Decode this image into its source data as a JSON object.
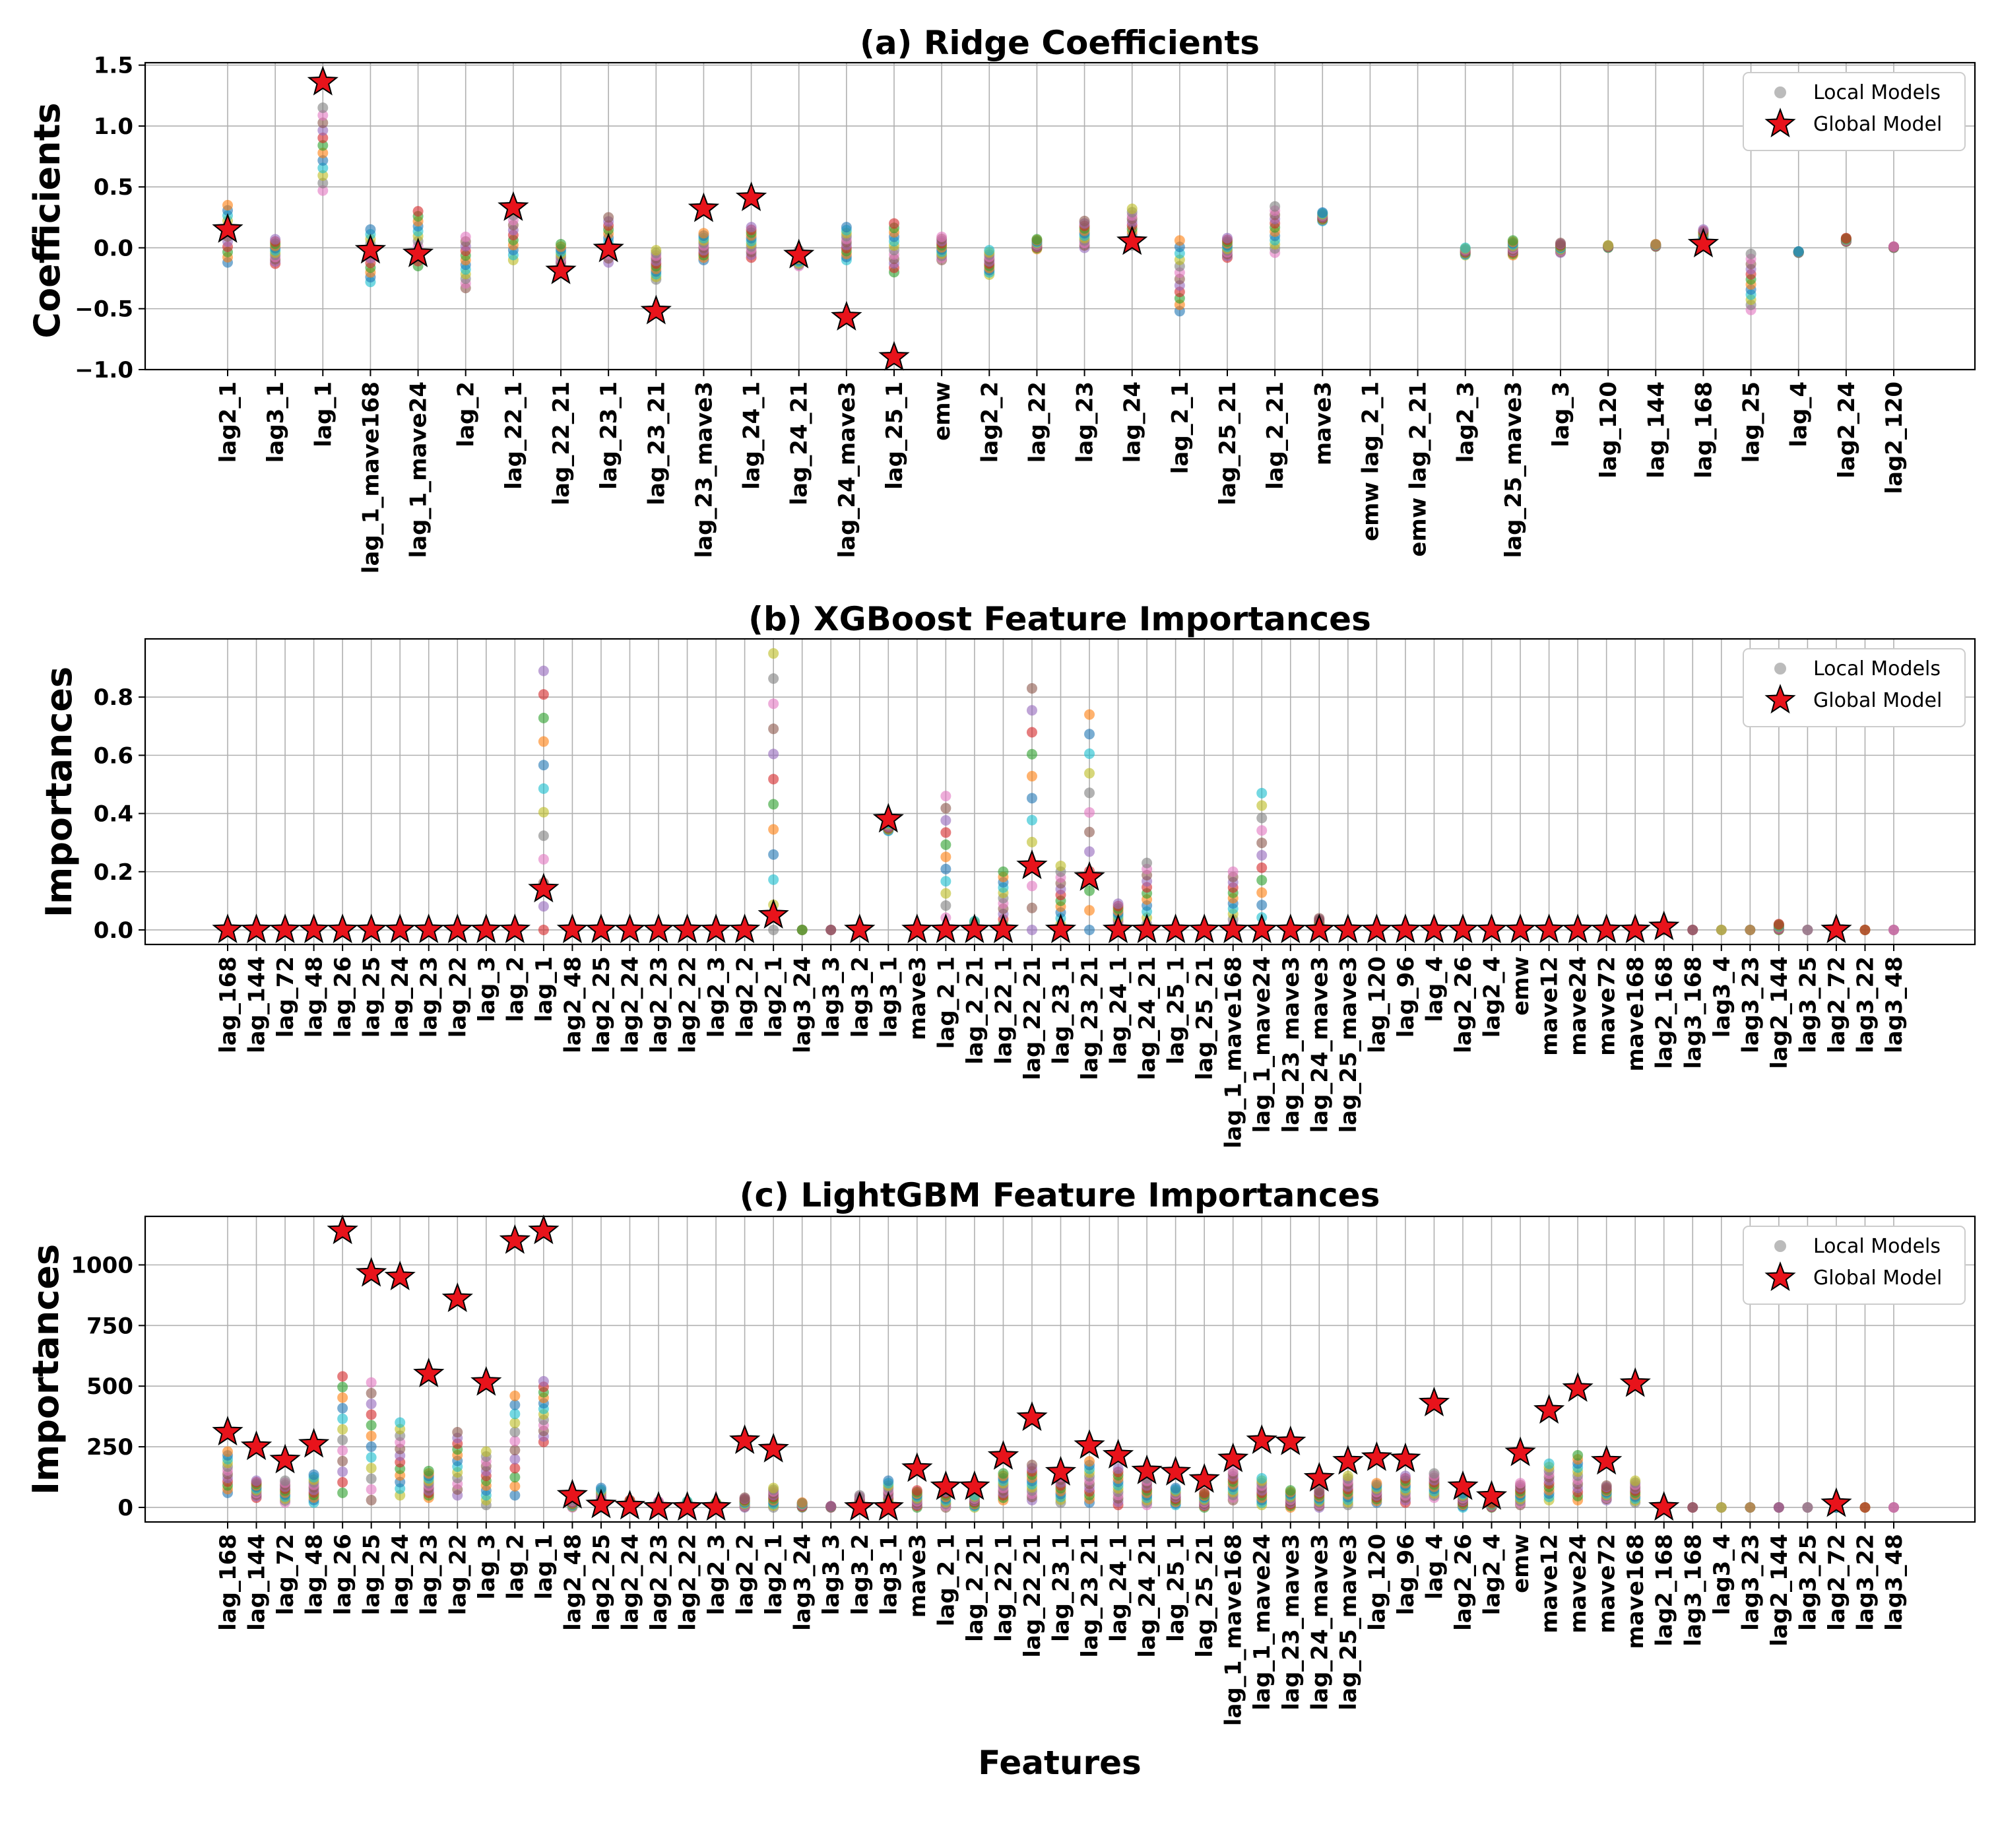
{
  "figure": {
    "xlabel": "Features"
  },
  "legend": {
    "local_label": "Local Models",
    "global_label": "Global Model"
  },
  "colors": {
    "global_star": "#e8131b",
    "local_marker": "#9e9e9e",
    "palette": [
      "#1f77b4",
      "#ff7f0e",
      "#2ca02c",
      "#d62728",
      "#9467bd",
      "#8c564b",
      "#e377c2",
      "#7f7f7f",
      "#bcbd22",
      "#17becf"
    ]
  },
  "chart_data": [
    {
      "id": "ridge",
      "type": "scatter",
      "title": "(a) Ridge Coefficients",
      "ylabel": "Coefficients",
      "ylim": [
        -1.0,
        1.52
      ],
      "yticks": [
        -1.0,
        -0.5,
        0.0,
        0.5,
        1.0,
        1.5
      ],
      "ytick_labels": [
        "−1.0",
        "−0.5",
        "0.0",
        "0.5",
        "1.0",
        "1.5"
      ],
      "categories": [
        "lag2_1",
        "lag3_1",
        "lag_1",
        "lag_1_mave168",
        "lag_1_mave24",
        "lag_2",
        "lag_22_1",
        "lag_22_21",
        "lag_23_1",
        "lag_23_21",
        "lag_23_mave3",
        "lag_24_1",
        "lag_24_21",
        "lag_24_mave3",
        "lag_25_1",
        "emw",
        "lag2_2",
        "lag_22",
        "lag_23",
        "lag_24",
        "lag_2_1",
        "lag_25_21",
        "lag_2_21",
        "mave3",
        "emw lag_2_1",
        "emw lag_2_21",
        "lag2_3",
        "lag_25_mave3",
        "lag_3",
        "lag_120",
        "lag_144",
        "lag_168",
        "lag_25",
        "lag_4",
        "lag2_24",
        "lag2_120"
      ],
      "global": [
        0.15,
        null,
        1.36,
        -0.02,
        -0.05,
        null,
        0.33,
        -0.19,
        -0.01,
        -0.52,
        0.32,
        0.41,
        -0.06,
        -0.57,
        -0.9,
        null,
        null,
        null,
        null,
        0.05,
        null,
        null,
        null,
        null,
        null,
        null,
        null,
        null,
        null,
        null,
        null,
        0.03,
        null,
        null,
        null,
        null
      ],
      "local_ranges": [
        [
          -0.12,
          0.35
        ],
        [
          -0.13,
          0.07
        ],
        [
          0.47,
          1.15
        ],
        [
          -0.28,
          0.15
        ],
        [
          -0.15,
          0.3
        ],
        [
          -0.33,
          0.09
        ],
        [
          -0.1,
          0.35
        ],
        [
          -0.2,
          0.03
        ],
        [
          -0.12,
          0.25
        ],
        [
          -0.26,
          -0.02
        ],
        [
          -0.1,
          0.12
        ],
        [
          -0.08,
          0.17
        ],
        [
          -0.15,
          -0.02
        ],
        [
          -0.1,
          0.17
        ],
        [
          -0.2,
          0.2
        ],
        [
          -0.1,
          0.09
        ],
        [
          -0.22,
          -0.02
        ],
        [
          -0.01,
          0.07
        ],
        [
          0.0,
          0.22
        ],
        [
          0.02,
          0.32
        ],
        [
          -0.52,
          0.06
        ],
        [
          -0.08,
          0.08
        ],
        [
          -0.04,
          0.34
        ],
        [
          0.22,
          0.29
        ],
        null,
        null,
        [
          -0.06,
          0.0
        ],
        [
          -0.06,
          0.06
        ],
        [
          -0.04,
          0.04
        ],
        [
          0.0,
          0.02
        ],
        [
          0.01,
          0.03
        ],
        [
          0.02,
          0.15
        ],
        [
          -0.51,
          -0.05
        ],
        [
          -0.04,
          -0.03
        ],
        [
          0.05,
          0.08
        ],
        [
          0.0,
          0.01
        ]
      ]
    },
    {
      "id": "xgboost",
      "type": "scatter",
      "title": "(b) XGBoost Feature Importances",
      "ylabel": "Importances",
      "ylim": [
        -0.05,
        1.0
      ],
      "yticks": [
        0.0,
        0.2,
        0.4,
        0.6,
        0.8
      ],
      "ytick_labels": [
        "0.0",
        "0.2",
        "0.4",
        "0.6",
        "0.8"
      ],
      "categories": [
        "lag_168",
        "lag_144",
        "lag_72",
        "lag_48",
        "lag_26",
        "lag_25",
        "lag_24",
        "lag_23",
        "lag_22",
        "lag_3",
        "lag_2",
        "lag_1",
        "lag2_48",
        "lag2_25",
        "lag2_24",
        "lag2_23",
        "lag2_22",
        "lag2_3",
        "lag2_2",
        "lag2_1",
        "lag3_24",
        "lag3_3",
        "lag3_2",
        "lag3_1",
        "mave3",
        "lag_2_1",
        "lag_2_21",
        "lag_22_1",
        "lag_22_21",
        "lag_23_1",
        "lag_23_21",
        "lag_24_1",
        "lag_24_21",
        "lag_25_1",
        "lag_25_21",
        "lag_1_mave168",
        "lag_1_mave24",
        "lag_23_mave3",
        "lag_24_mave3",
        "lag_25_mave3",
        "lag_120",
        "lag_96",
        "lag_4",
        "lag2_26",
        "lag2_4",
        "emw",
        "mave12",
        "mave24",
        "mave72",
        "mave168",
        "lag2_168",
        "lag3_168",
        "lag3_4",
        "lag3_23",
        "lag2_144",
        "lag3_25",
        "lag2_72",
        "lag3_22",
        "lag3_48"
      ],
      "global": [
        0,
        0,
        0,
        0,
        0,
        0,
        0,
        0,
        0,
        0,
        0,
        0.14,
        0,
        0,
        0,
        0,
        0,
        0,
        0,
        0.05,
        null,
        null,
        0,
        0.38,
        0,
        0,
        0,
        0,
        0.22,
        0,
        0.18,
        0,
        0,
        0,
        0,
        0,
        0,
        0,
        0,
        0,
        0,
        0,
        0,
        0,
        0,
        0,
        0,
        0,
        0,
        0,
        0.01,
        null,
        null,
        null,
        null,
        null,
        0,
        null,
        null
      ],
      "local_ranges": [
        null,
        null,
        null,
        null,
        null,
        null,
        null,
        null,
        null,
        null,
        null,
        [
          0.0,
          0.89
        ],
        null,
        null,
        null,
        null,
        null,
        null,
        null,
        [
          0.0,
          0.95
        ],
        [
          0.0,
          0.0
        ],
        [
          0.0,
          0.0
        ],
        null,
        [
          0.34,
          0.37
        ],
        [
          0.0,
          0.0
        ],
        [
          0.0,
          0.46
        ],
        [
          0.0,
          0.03
        ],
        [
          0.0,
          0.2
        ],
        [
          0.0,
          0.83
        ],
        [
          0.0,
          0.22
        ],
        [
          0.0,
          0.74
        ],
        [
          0.0,
          0.09
        ],
        [
          0.0,
          0.23
        ],
        null,
        null,
        [
          0.0,
          0.2
        ],
        [
          0.0,
          0.47
        ],
        [
          0.0,
          0.0
        ],
        [
          0.0,
          0.04
        ],
        null,
        null,
        null,
        null,
        null,
        null,
        null,
        null,
        null,
        null,
        null,
        [
          0.0,
          0.01
        ],
        [
          0.0,
          0.0
        ],
        [
          0.0,
          0.0
        ],
        [
          0.0,
          0.0
        ],
        [
          0.0,
          0.02
        ],
        [
          0.0,
          0.0
        ],
        [
          0.0,
          0.0
        ],
        [
          0.0,
          0.0
        ],
        [
          0.0,
          0.0
        ]
      ]
    },
    {
      "id": "lightgbm",
      "type": "scatter",
      "title": "(c) LightGBM Feature Importances",
      "ylabel": "Importances",
      "ylim": [
        -60,
        1200
      ],
      "yticks": [
        0,
        250,
        500,
        750,
        1000
      ],
      "ytick_labels": [
        "0",
        "250",
        "500",
        "750",
        "1000"
      ],
      "categories": [
        "lag_168",
        "lag_144",
        "lag_72",
        "lag_48",
        "lag_26",
        "lag_25",
        "lag_24",
        "lag_23",
        "lag_22",
        "lag_3",
        "lag_2",
        "lag_1",
        "lag2_48",
        "lag2_25",
        "lag2_24",
        "lag2_23",
        "lag2_22",
        "lag2_3",
        "lag2_2",
        "lag2_1",
        "lag3_24",
        "lag3_3",
        "lag3_2",
        "lag3_1",
        "mave3",
        "lag_2_1",
        "lag_2_21",
        "lag_22_1",
        "lag_22_21",
        "lag_23_1",
        "lag_23_21",
        "lag_24_1",
        "lag_24_21",
        "lag_25_1",
        "lag_25_21",
        "lag_1_mave168",
        "lag_1_mave24",
        "lag_23_mave3",
        "lag_24_mave3",
        "lag_25_mave3",
        "lag_120",
        "lag_96",
        "lag_4",
        "lag2_26",
        "lag2_4",
        "emw",
        "mave12",
        "mave24",
        "mave72",
        "mave168",
        "lag2_168",
        "lag3_168",
        "lag3_4",
        "lag3_23",
        "lag2_144",
        "lag3_25",
        "lag2_72",
        "lag3_22",
        "lag3_48"
      ],
      "global": [
        310,
        250,
        195,
        260,
        1140,
        965,
        950,
        550,
        860,
        515,
        1100,
        1140,
        50,
        10,
        5,
        0,
        0,
        0,
        275,
        240,
        null,
        null,
        0,
        0,
        160,
        85,
        85,
        210,
        370,
        145,
        255,
        215,
        150,
        145,
        115,
        200,
        275,
        270,
        120,
        190,
        205,
        200,
        430,
        85,
        45,
        225,
        400,
        490,
        190,
        510,
        0,
        null,
        null,
        null,
        null,
        null,
        15,
        null,
        null
      ],
      "local_ranges": [
        [
          60,
          230
        ],
        [
          40,
          110
        ],
        [
          20,
          110
        ],
        [
          20,
          135
        ],
        [
          60,
          540
        ],
        [
          30,
          515
        ],
        [
          50,
          350
        ],
        [
          40,
          150
        ],
        [
          50,
          310
        ],
        [
          10,
          230
        ],
        [
          50,
          460
        ],
        [
          270,
          520
        ],
        [
          0,
          30
        ],
        [
          0,
          80
        ],
        [
          0,
          30
        ],
        [
          0,
          25
        ],
        [
          0,
          25
        ],
        [
          0,
          20
        ],
        [
          0,
          40
        ],
        [
          0,
          80
        ],
        [
          0,
          20
        ],
        [
          0,
          5
        ],
        [
          0,
          50
        ],
        [
          0,
          110
        ],
        [
          0,
          70
        ],
        [
          0,
          80
        ],
        [
          0,
          50
        ],
        [
          30,
          140
        ],
        [
          30,
          175
        ],
        [
          20,
          150
        ],
        [
          20,
          190
        ],
        [
          10,
          160
        ],
        [
          10,
          120
        ],
        [
          10,
          80
        ],
        [
          0,
          60
        ],
        [
          30,
          150
        ],
        [
          10,
          120
        ],
        [
          0,
          70
        ],
        [
          0,
          70
        ],
        [
          10,
          130
        ],
        [
          20,
          100
        ],
        [
          20,
          130
        ],
        [
          40,
          140
        ],
        [
          0,
          60
        ],
        [
          0,
          20
        ],
        [
          10,
          100
        ],
        [
          30,
          180
        ],
        [
          30,
          215
        ],
        [
          30,
          90
        ],
        [
          20,
          110
        ],
        [
          0,
          0
        ],
        [
          0,
          0
        ],
        [
          0,
          0
        ],
        [
          0,
          0
        ],
        [
          0,
          0
        ],
        [
          0,
          0
        ],
        [
          0,
          0
        ],
        [
          0,
          0
        ],
        [
          0,
          0
        ]
      ]
    }
  ]
}
